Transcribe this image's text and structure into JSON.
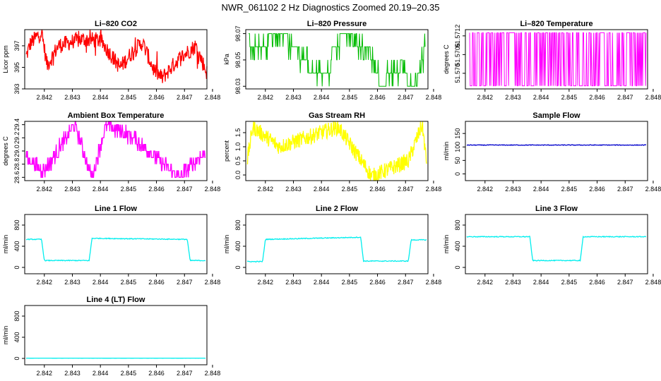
{
  "figure_title": "NWR_061102  2 Hz Diagnostics Zoomed 20.19–20.35",
  "chart_data": [
    {
      "type": "line",
      "title": "Li–820 CO2",
      "ylabel": "Licor ppm",
      "color": "#ff0000",
      "xlim": [
        2.8413,
        2.8478
      ],
      "ylim": [
        393,
        398.5
      ],
      "yticks": [
        393,
        395,
        397
      ],
      "ytick_labels": [
        "393",
        "395",
        "397"
      ],
      "xticks": [
        2.842,
        2.843,
        2.844,
        2.845,
        2.846,
        2.847,
        2.848
      ],
      "xtick_labels": [
        "2.842",
        "2.843",
        "2.844",
        "2.845",
        "2.846",
        "2.847",
        "2.848"
      ],
      "series": [
        {
          "name": "CO2",
          "values": [
            {
              "x": 2.84135,
              "y": 396.0
            },
            {
              "x": 2.8415,
              "y": 397.2
            },
            {
              "x": 2.8419,
              "y": 398.3
            },
            {
              "x": 2.8421,
              "y": 395.2
            },
            {
              "x": 2.8425,
              "y": 397.0
            },
            {
              "x": 2.8433,
              "y": 397.6
            },
            {
              "x": 2.844,
              "y": 397.5
            },
            {
              "x": 2.8447,
              "y": 395.0
            },
            {
              "x": 2.8452,
              "y": 396.6
            },
            {
              "x": 2.8455,
              "y": 397.3
            },
            {
              "x": 2.8459,
              "y": 394.8
            },
            {
              "x": 2.8462,
              "y": 394.0
            },
            {
              "x": 2.8468,
              "y": 395.8
            },
            {
              "x": 2.8474,
              "y": 397.0
            },
            {
              "x": 2.8478,
              "y": 394.5
            }
          ]
        }
      ]
    },
    {
      "type": "line",
      "title": "Li–820 Pressure",
      "ylabel": "kPa",
      "color": "#00bb00",
      "xlim": [
        2.8413,
        2.8478
      ],
      "ylim": [
        98.028,
        98.073
      ],
      "yticks": [
        98.03,
        98.05,
        98.07
      ],
      "ytick_labels": [
        "98.03",
        "98.05",
        "98.07"
      ],
      "xticks": [
        2.842,
        2.843,
        2.844,
        2.845,
        2.846,
        2.847,
        2.848
      ],
      "xtick_labels": [
        "2.842",
        "2.843",
        "2.844",
        "2.845",
        "2.846",
        "2.847",
        "2.848"
      ],
      "series": [
        {
          "name": "Pressure",
          "values": [
            {
              "x": 2.8414,
              "y": 98.07
            },
            {
              "x": 2.8415,
              "y": 98.06
            },
            {
              "x": 2.8417,
              "y": 98.06
            },
            {
              "x": 2.8421,
              "y": 98.06
            },
            {
              "x": 2.8421,
              "y": 98.07
            },
            {
              "x": 2.8428,
              "y": 98.07
            },
            {
              "x": 2.8428,
              "y": 98.06
            },
            {
              "x": 2.8432,
              "y": 98.06
            },
            {
              "x": 2.8432,
              "y": 98.05
            },
            {
              "x": 2.8435,
              "y": 98.05
            },
            {
              "x": 2.8436,
              "y": 98.04
            },
            {
              "x": 2.8443,
              "y": 98.04
            },
            {
              "x": 2.8444,
              "y": 98.06
            },
            {
              "x": 2.8446,
              "y": 98.06
            },
            {
              "x": 2.8447,
              "y": 98.07
            },
            {
              "x": 2.8451,
              "y": 98.07
            },
            {
              "x": 2.8451,
              "y": 98.06
            },
            {
              "x": 2.8457,
              "y": 98.06
            },
            {
              "x": 2.8458,
              "y": 98.05
            },
            {
              "x": 2.846,
              "y": 98.04
            },
            {
              "x": 2.8461,
              "y": 98.03
            },
            {
              "x": 2.8465,
              "y": 98.04
            },
            {
              "x": 2.847,
              "y": 98.04
            },
            {
              "x": 2.8471,
              "y": 98.03
            },
            {
              "x": 2.8474,
              "y": 98.03
            },
            {
              "x": 2.8477,
              "y": 98.06
            }
          ]
        }
      ]
    },
    {
      "type": "line",
      "title": "Li–820 Temperature",
      "ylabel": "degrees C",
      "color": "#ff00ff",
      "xlim": [
        2.8413,
        2.8478
      ],
      "ylim": [
        51.5695,
        51.5714
      ],
      "yticks": [
        51.57,
        51.5706,
        51.5712
      ],
      "ytick_labels": [
        "51.570",
        "51.5706",
        "51.5712"
      ],
      "xticks": [
        2.842,
        2.843,
        2.844,
        2.845,
        2.846,
        2.847,
        2.848
      ],
      "xtick_labels": [
        "2.842",
        "2.843",
        "2.844",
        "2.845",
        "2.846",
        "2.847",
        "2.848"
      ],
      "series": [
        {
          "name": "Temperature",
          "values": [
            {
              "x": 2.84145,
              "y": 51.5713
            },
            {
              "x": 2.8415,
              "y": 51.5696
            },
            {
              "x": 2.8425,
              "y": 51.5713
            },
            {
              "x": 2.8435,
              "y": 51.5696
            },
            {
              "x": 2.8445,
              "y": 51.5713
            },
            {
              "x": 2.8455,
              "y": 51.5696
            },
            {
              "x": 2.8465,
              "y": 51.5713
            },
            {
              "x": 2.84775,
              "y": 51.5696
            }
          ]
        }
      ]
    },
    {
      "type": "line",
      "title": "Ambient Box Temperature",
      "ylabel": "degrees C",
      "color": "#ff00ff",
      "xlim": [
        2.8413,
        2.8478
      ],
      "ylim": [
        28.55,
        29.45
      ],
      "yticks": [
        28.6,
        28.8,
        29.0,
        29.2,
        29.4
      ],
      "ytick_labels": [
        "28.6",
        "28.8",
        "29.0",
        "29.2",
        "29.4"
      ],
      "xticks": [
        2.842,
        2.843,
        2.844,
        2.845,
        2.846,
        2.847,
        2.848
      ],
      "xtick_labels": [
        "2.842",
        "2.843",
        "2.844",
        "2.845",
        "2.846",
        "2.847",
        "2.848"
      ],
      "series": [
        {
          "name": "Ambient",
          "values": [
            {
              "x": 2.84135,
              "y": 28.9
            },
            {
              "x": 2.842,
              "y": 28.7
            },
            {
              "x": 2.8431,
              "y": 29.4
            },
            {
              "x": 2.8437,
              "y": 28.6
            },
            {
              "x": 2.8442,
              "y": 29.4
            },
            {
              "x": 2.8452,
              "y": 29.2
            },
            {
              "x": 2.8468,
              "y": 28.6
            },
            {
              "x": 2.84775,
              "y": 29.0
            }
          ]
        }
      ]
    },
    {
      "type": "line",
      "title": "Gas Stream RH",
      "ylabel": "percent",
      "color": "#ffff00",
      "xlim": [
        2.8413,
        2.8478
      ],
      "ylim": [
        -0.2,
        1.9
      ],
      "yticks": [
        0.0,
        0.5,
        1.0,
        1.5
      ],
      "ytick_labels": [
        "0.0",
        "0.5",
        "1.0",
        "1.5"
      ],
      "xticks": [
        2.842,
        2.843,
        2.844,
        2.845,
        2.846,
        2.847,
        2.848
      ],
      "xtick_labels": [
        "2.842",
        "2.843",
        "2.844",
        "2.845",
        "2.846",
        "2.847",
        "2.848"
      ],
      "series": [
        {
          "name": "RH",
          "values": [
            {
              "x": 2.84135,
              "y": 0.5
            },
            {
              "x": 2.84155,
              "y": 1.7
            },
            {
              "x": 2.8425,
              "y": 1.0
            },
            {
              "x": 2.8446,
              "y": 1.7
            },
            {
              "x": 2.8458,
              "y": -0.05
            },
            {
              "x": 2.8471,
              "y": 0.5
            },
            {
              "x": 2.8476,
              "y": 1.8
            },
            {
              "x": 2.84775,
              "y": 0.4
            }
          ]
        }
      ]
    },
    {
      "type": "line",
      "title": "Sample Flow",
      "ylabel": "ml/min",
      "color": "#0000cc",
      "xlim": [
        2.8413,
        2.8478
      ],
      "ylim": [
        -25,
        195
      ],
      "yticks": [
        0,
        50,
        100,
        150
      ],
      "ytick_labels": [
        "0",
        "50",
        "100",
        "150"
      ],
      "xticks": [
        2.842,
        2.843,
        2.844,
        2.845,
        2.846,
        2.847,
        2.848
      ],
      "xtick_labels": [
        "2.842",
        "2.843",
        "2.844",
        "2.845",
        "2.846",
        "2.847",
        "2.848"
      ],
      "series": [
        {
          "name": "Sample",
          "values": [
            {
              "x": 2.84135,
              "y": 107
            },
            {
              "x": 2.84775,
              "y": 107
            }
          ]
        }
      ]
    },
    {
      "type": "line",
      "title": "Line 1 Flow",
      "ylabel": "ml/min",
      "color": "#00eeee",
      "xlim": [
        2.8413,
        2.8478
      ],
      "ylim": [
        -120,
        1000
      ],
      "yticks": [
        0,
        400,
        800
      ],
      "ytick_labels": [
        "0",
        "400",
        "800"
      ],
      "xticks": [
        2.842,
        2.843,
        2.844,
        2.845,
        2.846,
        2.847,
        2.848
      ],
      "xtick_labels": [
        "2.842",
        "2.843",
        "2.844",
        "2.845",
        "2.846",
        "2.847",
        "2.848"
      ],
      "series": [
        {
          "name": "Line1",
          "values": [
            {
              "x": 2.84135,
              "y": 530
            },
            {
              "x": 2.8419,
              "y": 530
            },
            {
              "x": 2.842,
              "y": 130
            },
            {
              "x": 2.8436,
              "y": 130
            },
            {
              "x": 2.8437,
              "y": 550
            },
            {
              "x": 2.8471,
              "y": 530
            },
            {
              "x": 2.8472,
              "y": 130
            },
            {
              "x": 2.84775,
              "y": 130
            }
          ]
        }
      ]
    },
    {
      "type": "line",
      "title": "Line 2 Flow",
      "ylabel": "ml/min",
      "color": "#00eeee",
      "xlim": [
        2.8413,
        2.8478
      ],
      "ylim": [
        -120,
        1000
      ],
      "yticks": [
        0,
        400,
        800
      ],
      "ytick_labels": [
        "0",
        "400",
        "800"
      ],
      "xticks": [
        2.842,
        2.843,
        2.844,
        2.845,
        2.846,
        2.847,
        2.848
      ],
      "xtick_labels": [
        "2.842",
        "2.843",
        "2.844",
        "2.845",
        "2.846",
        "2.847",
        "2.848"
      ],
      "series": [
        {
          "name": "Line2",
          "values": [
            {
              "x": 2.84135,
              "y": 110
            },
            {
              "x": 2.8419,
              "y": 110
            },
            {
              "x": 2.842,
              "y": 530
            },
            {
              "x": 2.8454,
              "y": 570
            },
            {
              "x": 2.8455,
              "y": 120
            },
            {
              "x": 2.8471,
              "y": 120
            },
            {
              "x": 2.8472,
              "y": 520
            },
            {
              "x": 2.84775,
              "y": 520
            }
          ]
        }
      ]
    },
    {
      "type": "line",
      "title": "Line 3 Flow",
      "ylabel": "ml/min",
      "color": "#00eeee",
      "xlim": [
        2.8413,
        2.8478
      ],
      "ylim": [
        -120,
        1000
      ],
      "yticks": [
        0,
        400,
        800
      ],
      "ytick_labels": [
        "0",
        "400",
        "800"
      ],
      "xticks": [
        2.842,
        2.843,
        2.844,
        2.845,
        2.846,
        2.847,
        2.848
      ],
      "xtick_labels": [
        "2.842",
        "2.843",
        "2.844",
        "2.845",
        "2.846",
        "2.847",
        "2.848"
      ],
      "series": [
        {
          "name": "Line3",
          "values": [
            {
              "x": 2.84135,
              "y": 580
            },
            {
              "x": 2.8436,
              "y": 580
            },
            {
              "x": 2.8437,
              "y": 130
            },
            {
              "x": 2.8454,
              "y": 130
            },
            {
              "x": 2.8455,
              "y": 580
            },
            {
              "x": 2.84775,
              "y": 580
            }
          ]
        }
      ]
    },
    {
      "type": "line",
      "title": "Line 4 (LT) Flow",
      "ylabel": "ml/min",
      "color": "#00eeee",
      "xlim": [
        2.8413,
        2.8478
      ],
      "ylim": [
        -120,
        1000
      ],
      "yticks": [
        0,
        400,
        800
      ],
      "ytick_labels": [
        "0",
        "400",
        "800"
      ],
      "xticks": [
        2.842,
        2.843,
        2.844,
        2.845,
        2.846,
        2.847,
        2.848
      ],
      "xtick_labels": [
        "2.842",
        "2.843",
        "2.844",
        "2.845",
        "2.846",
        "2.847",
        "2.848"
      ],
      "series": [
        {
          "name": "Line4",
          "values": [
            {
              "x": 2.84135,
              "y": 5
            },
            {
              "x": 2.84775,
              "y": 5
            }
          ]
        }
      ]
    }
  ]
}
